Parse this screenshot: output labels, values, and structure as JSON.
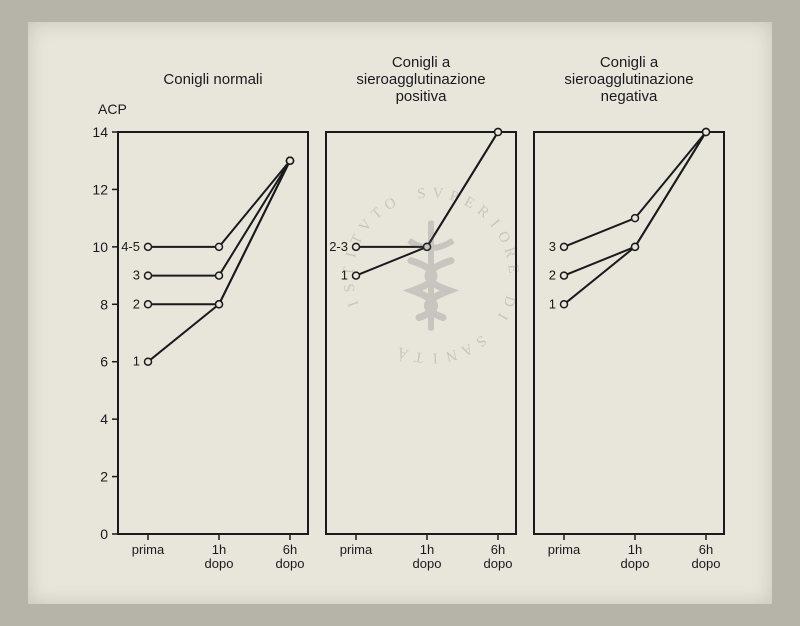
{
  "paper_bg": "#e8e6db",
  "outer_bg": "#b6b4a8",
  "line_color": "#1a1a1a",
  "point_fill": "#e8e6db",
  "marker_radius": 3.5,
  "line_width": 2,
  "y_axis_label": "ACP",
  "ylim": [
    0,
    14
  ],
  "yticks": [
    0,
    2,
    4,
    6,
    8,
    10,
    12,
    14
  ],
  "x_labels": [
    "prima",
    "1h\ndopo",
    "6h\ndopo"
  ],
  "panels": [
    {
      "title": "Conigli normali",
      "series": [
        {
          "label": "4-5",
          "values": [
            10,
            10,
            13
          ]
        },
        {
          "label": "3",
          "values": [
            9,
            9,
            13
          ]
        },
        {
          "label": "2",
          "values": [
            8,
            8,
            13
          ]
        },
        {
          "label": "1",
          "values": [
            6,
            8,
            13
          ]
        }
      ]
    },
    {
      "title": "Conigli a\nsieroagglutinazione\npositiva",
      "series": [
        {
          "label": "2-3",
          "values": [
            10,
            10,
            14
          ]
        },
        {
          "label": "1",
          "values": [
            9,
            10,
            14
          ]
        }
      ]
    },
    {
      "title": "Conigli a\nsieroagglutinazione\nnegativa",
      "series": [
        {
          "label": "3",
          "values": [
            10,
            11,
            14
          ]
        },
        {
          "label": "2",
          "values": [
            9,
            10,
            14
          ]
        },
        {
          "label": "1",
          "values": [
            8,
            10,
            14
          ]
        }
      ]
    }
  ],
  "watermark_text": "ISTITVTO SVPERIORE DI SANITÀ"
}
